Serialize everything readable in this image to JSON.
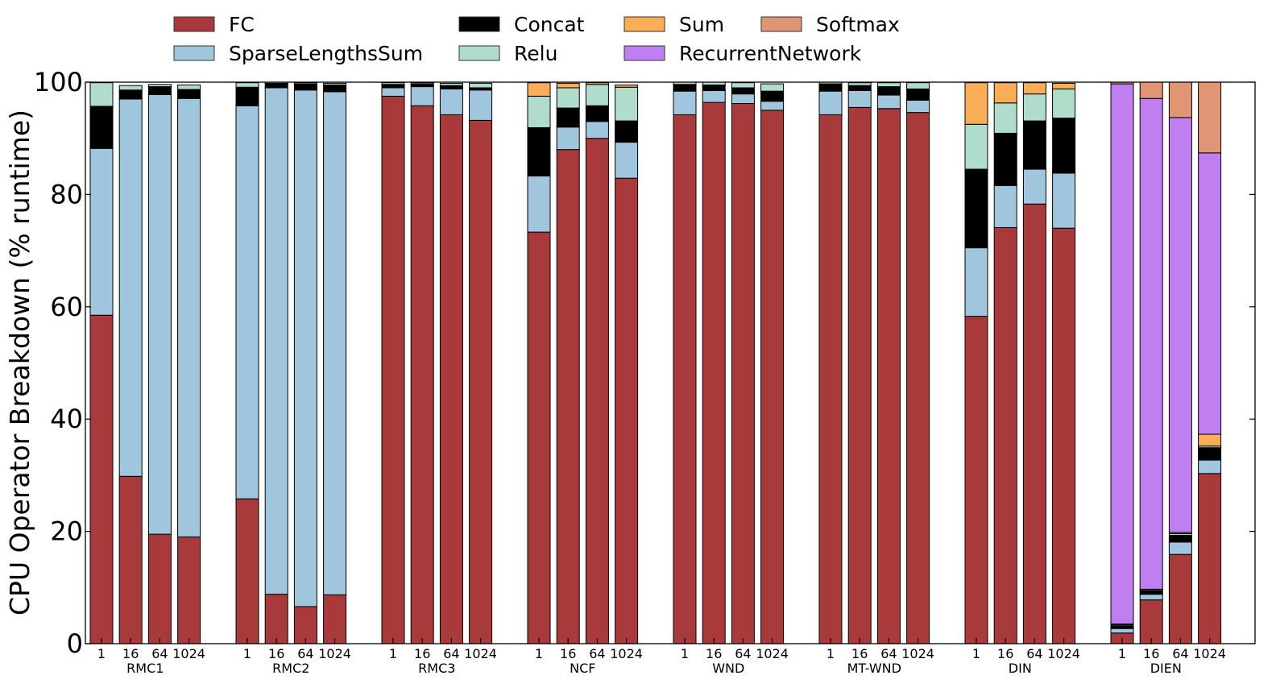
{
  "chart_data": {
    "type": "bar",
    "stacked": true,
    "title": "",
    "ylabel": "CPU Operator Breakdown (% runtime)",
    "xlabel": "",
    "ylim": [
      0,
      100
    ],
    "yticks": [
      "0",
      "20",
      "40",
      "60",
      "80",
      "100"
    ],
    "grid": false,
    "legend_position": "top",
    "groups": [
      "RMC1",
      "RMC2",
      "RMC3",
      "NCF",
      "WND",
      "MT-WND",
      "DIN",
      "DIEN"
    ],
    "batch_sizes": [
      "1",
      "16",
      "64",
      "1024"
    ],
    "series": [
      {
        "name": "FC",
        "color": "#a83a3c",
        "values": [
          [
            58.5,
            29.8,
            19.5,
            19.0
          ],
          [
            25.8,
            8.8,
            6.6,
            8.7
          ],
          [
            97.5,
            95.8,
            94.2,
            93.2
          ],
          [
            73.3,
            88.0,
            90.0,
            82.9
          ],
          [
            94.2,
            96.4,
            96.2,
            95.0
          ],
          [
            94.2,
            95.5,
            95.3,
            94.6
          ],
          [
            58.3,
            74.1,
            78.3,
            74.0
          ],
          [
            1.9,
            7.8,
            15.9,
            30.3
          ]
        ]
      },
      {
        "name": "SparseLengthsSum",
        "color": "#a0c6dd",
        "values": [
          [
            29.7,
            67.2,
            78.3,
            78.1
          ],
          [
            70.0,
            90.2,
            92.0,
            89.6
          ],
          [
            1.5,
            3.4,
            4.6,
            5.4
          ],
          [
            10.0,
            4.0,
            3.0,
            6.4
          ],
          [
            4.2,
            2.1,
            1.7,
            1.6
          ],
          [
            4.2,
            3.0,
            2.4,
            2.2
          ],
          [
            12.2,
            7.5,
            6.2,
            9.8
          ],
          [
            0.8,
            1.0,
            2.2,
            2.4
          ]
        ]
      },
      {
        "name": "Concat",
        "color": "#000000",
        "values": [
          [
            7.5,
            1.6,
            1.4,
            1.6
          ],
          [
            3.3,
            0.8,
            1.1,
            1.2
          ],
          [
            0.6,
            0.5,
            0.6,
            0.4
          ],
          [
            8.6,
            3.4,
            2.8,
            3.8
          ],
          [
            1.2,
            1.0,
            1.1,
            1.8
          ],
          [
            1.3,
            0.9,
            1.5,
            2.0
          ],
          [
            14.0,
            9.3,
            8.6,
            9.8
          ],
          [
            0.5,
            0.6,
            1.2,
            2.2
          ]
        ]
      },
      {
        "name": "Relu",
        "color": "#b0dccb",
        "values": [
          [
            4.2,
            0.8,
            0.4,
            0.8
          ],
          [
            0.8,
            0.2,
            0.2,
            0.3
          ],
          [
            0.3,
            0.2,
            0.4,
            0.8
          ],
          [
            5.6,
            3.6,
            3.8,
            6.0
          ],
          [
            0.4,
            0.5,
            0.9,
            1.3
          ],
          [
            0.3,
            0.5,
            0.7,
            1.1
          ],
          [
            8.0,
            5.4,
            4.8,
            5.2
          ],
          [
            0.2,
            0.2,
            0.3,
            0.3
          ]
        ]
      },
      {
        "name": "Sum",
        "color": "#f8ad56",
        "values": [
          [
            0,
            0,
            0,
            0
          ],
          [
            0,
            0,
            0,
            0
          ],
          [
            0,
            0,
            0,
            0
          ],
          [
            2.4,
            0.8,
            0.3,
            0.4
          ],
          [
            0,
            0,
            0,
            0
          ],
          [
            0,
            0,
            0,
            0
          ],
          [
            7.4,
            3.6,
            2.0,
            1.0
          ],
          [
            0.1,
            0.1,
            0.2,
            2.1
          ]
        ]
      },
      {
        "name": "RecurrentNetwork",
        "color": "#c07ff0",
        "values": [
          [
            0,
            0,
            0,
            0
          ],
          [
            0,
            0,
            0,
            0
          ],
          [
            0,
            0,
            0,
            0
          ],
          [
            0,
            0,
            0,
            0
          ],
          [
            0,
            0,
            0,
            0
          ],
          [
            0,
            0,
            0,
            0
          ],
          [
            0,
            0,
            0,
            0
          ],
          [
            96.2,
            87.4,
            73.9,
            50.1
          ]
        ]
      },
      {
        "name": "Softmax",
        "color": "#e09575",
        "values": [
          [
            0,
            0,
            0,
            0
          ],
          [
            0,
            0,
            0,
            0
          ],
          [
            0,
            0,
            0,
            0
          ],
          [
            0,
            0,
            0,
            0
          ],
          [
            0,
            0,
            0,
            0
          ],
          [
            0,
            0,
            0,
            0
          ],
          [
            0,
            0,
            0,
            0
          ],
          [
            0.3,
            2.9,
            6.3,
            12.6
          ]
        ]
      }
    ],
    "legend_order": [
      "FC",
      "SparseLengthsSum",
      "Concat",
      "Relu",
      "Sum",
      "RecurrentNetwork",
      "Softmax"
    ]
  }
}
